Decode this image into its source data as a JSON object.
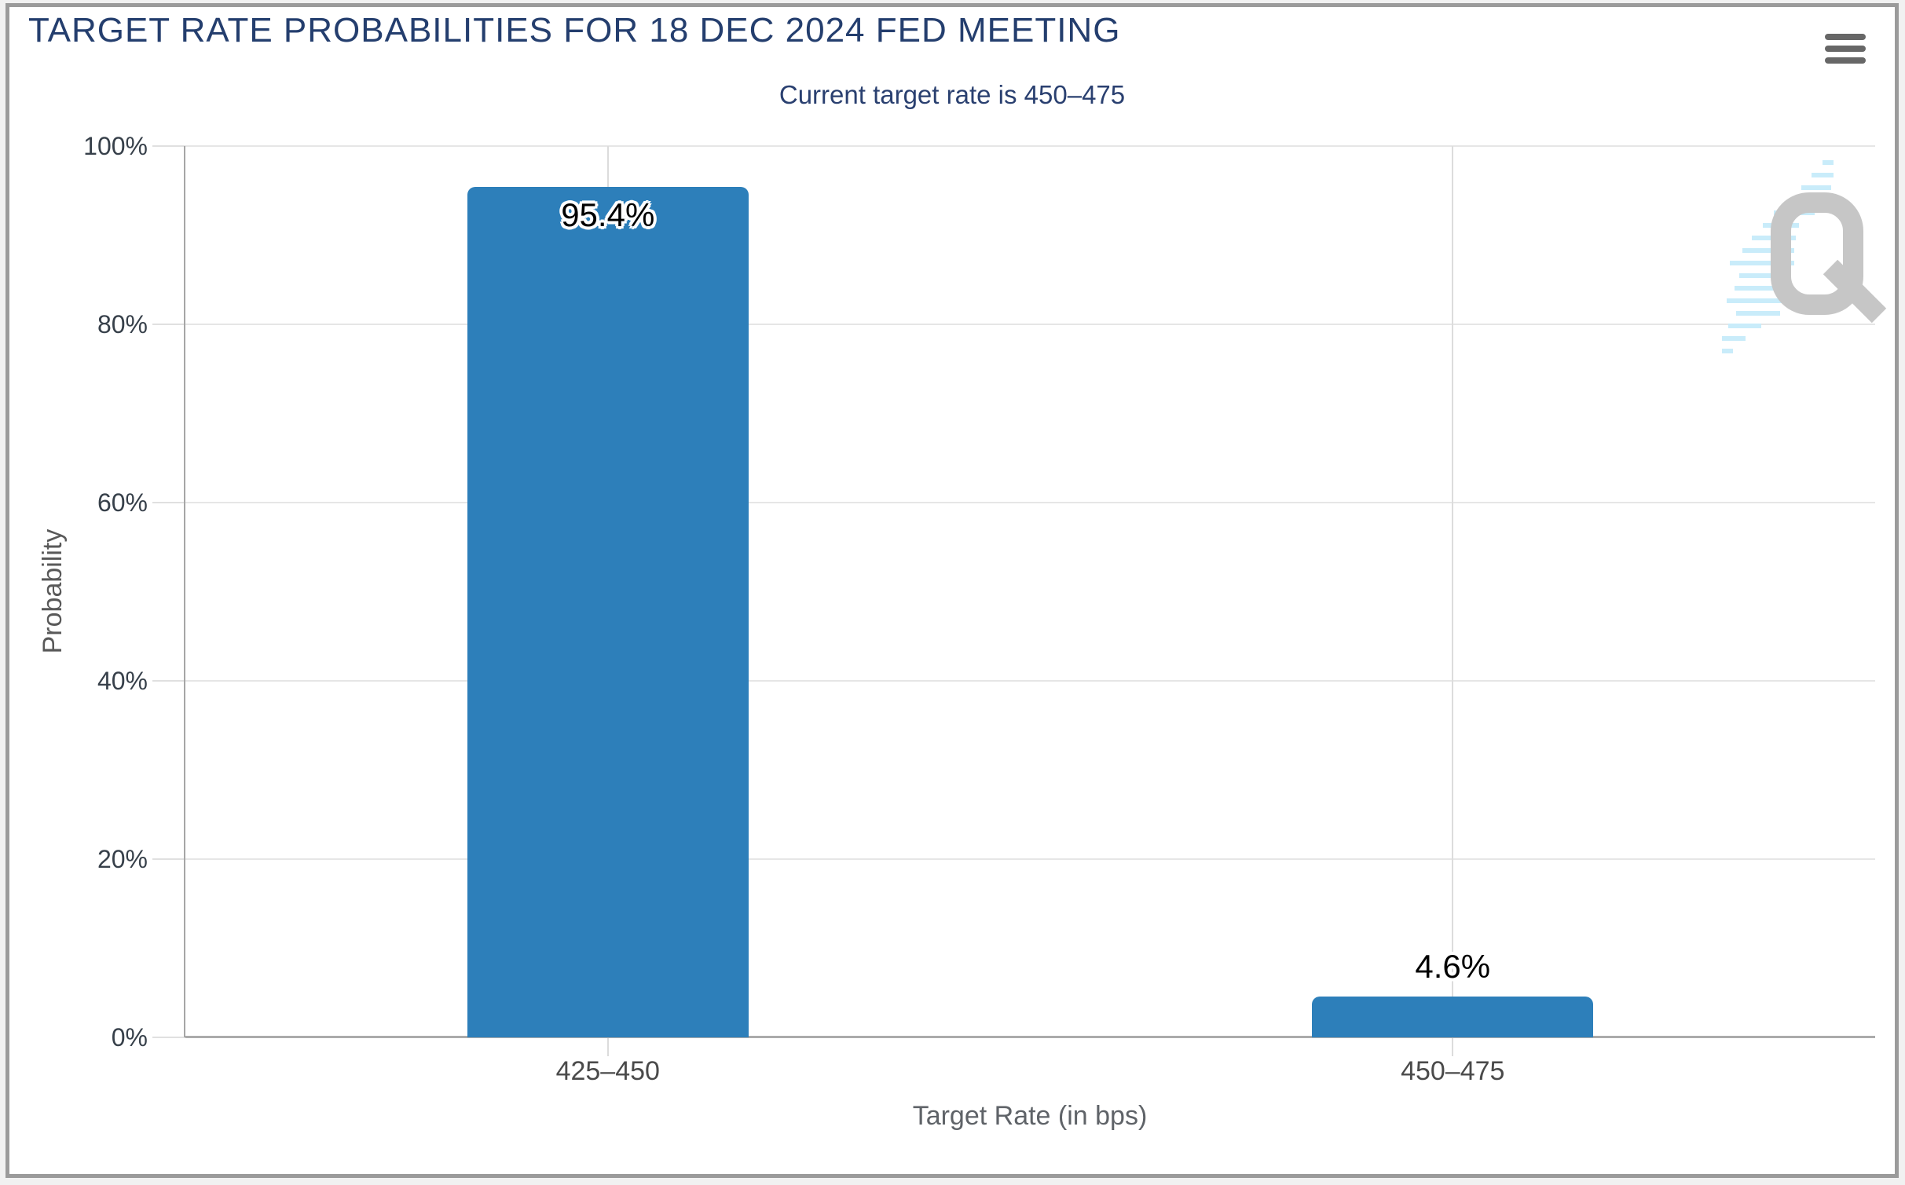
{
  "header": {
    "title": "TARGET RATE PROBABILITIES FOR 18 DEC 2024 FED MEETING",
    "subtitle": "Current target rate is 450–475"
  },
  "menu": {
    "icon": "hamburger-icon",
    "label": "Chart menu"
  },
  "watermark": {
    "letter": "Q"
  },
  "colors": {
    "bar": "#2d7fba",
    "title": "#243e6e",
    "subtitle": "#2a4070",
    "grid": "#e6e6e6",
    "vgrid": "#dcdcdc",
    "axis_line": "#a6a6a6",
    "baseline": "#ababab",
    "tick_label": "#37404a",
    "category_label": "#4a4a4a",
    "axis_title": "#5f6368",
    "menu_icon": "#676767",
    "border": "#9b9b9b",
    "page_bg": "#f1f1f1",
    "watermark_gray": "#c6c6c6",
    "watermark_blue": "#c9ecfa"
  },
  "chart_data": {
    "type": "bar",
    "title": "TARGET RATE PROBABILITIES FOR 18 DEC 2024 FED MEETING",
    "subtitle": "Current target rate is 450–475",
    "categories": [
      "425–450",
      "450–475"
    ],
    "values": [
      95.4,
      4.6
    ],
    "value_labels": [
      "95.4%",
      "4.6%"
    ],
    "xlabel": "Target Rate (in bps)",
    "ylabel": "Probability",
    "ylim": [
      0,
      100
    ],
    "yticks": [
      0,
      20,
      40,
      60,
      80,
      100
    ],
    "ytick_labels": [
      "0%",
      "20%",
      "40%",
      "60%",
      "80%",
      "100%"
    ],
    "grid": true,
    "legend": false
  }
}
